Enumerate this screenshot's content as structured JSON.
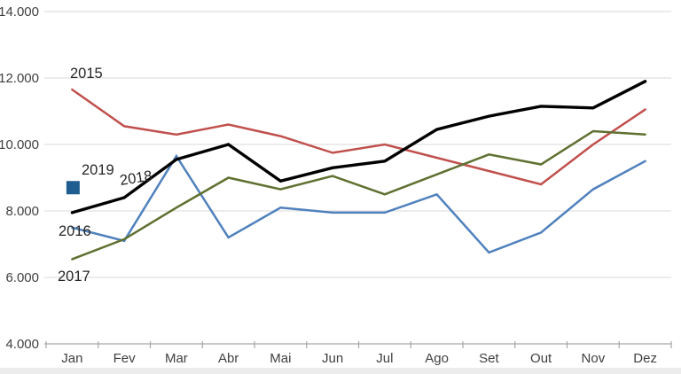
{
  "page": {
    "background": "#FFFFFF",
    "bottom_strip_color": "#ECECEC"
  },
  "chart_data": {
    "type": "line",
    "title": "",
    "xlabel": "",
    "ylabel": "",
    "categories": [
      "Jan",
      "Fev",
      "Mar",
      "Abr",
      "Mai",
      "Jun",
      "Jul",
      "Ago",
      "Set",
      "Out",
      "Nov",
      "Dez"
    ],
    "series": [
      {
        "name": "2015",
        "color": "#C0504D",
        "style": "line",
        "values": [
          11650,
          10550,
          10300,
          10600,
          10250,
          9750,
          10000,
          9600,
          9200,
          8800,
          10000,
          11050
        ]
      },
      {
        "name": "2016",
        "color": "#4F81BD",
        "style": "line",
        "values": [
          7500,
          7100,
          9650,
          7200,
          8100,
          7950,
          7950,
          8500,
          6750,
          7350,
          8650,
          9500
        ]
      },
      {
        "name": "2017",
        "color": "#5F7030",
        "style": "line",
        "values": [
          6550,
          7150,
          8100,
          9000,
          8650,
          9050,
          8500,
          9100,
          9700,
          9400,
          10400,
          10300
        ]
      },
      {
        "name": "2018",
        "color": "#000000",
        "style": "line",
        "emphasis": true,
        "values": [
          7950,
          8400,
          9550,
          10000,
          8900,
          9300,
          9500,
          10450,
          10850,
          11150,
          11100,
          11900
        ]
      },
      {
        "name": "2019",
        "color": "#1F5C8F",
        "style": "square-marker",
        "values": [
          8700,
          null,
          null,
          null,
          null,
          null,
          null,
          null,
          null,
          null,
          null,
          null
        ]
      }
    ],
    "y_axis": {
      "min": 4000,
      "max": 14000,
      "tick_step": 2000,
      "ticks": [
        {
          "label": "14.000",
          "value": 14000
        },
        {
          "label": "12.000",
          "value": 12000
        },
        {
          "label": "10.000",
          "value": 10000
        },
        {
          "label": "8.000",
          "value": 8000
        },
        {
          "label": "6.000",
          "value": 6000
        },
        {
          "label": "4.000",
          "value": 4000
        }
      ]
    },
    "grid": "horizontal",
    "gridline_color": "#D9D9D9",
    "axis_line_color": "#A6A6A6",
    "axis_text_color": "#404040",
    "series_label_color": "#262626",
    "legend_position": "inline-series-labels"
  }
}
